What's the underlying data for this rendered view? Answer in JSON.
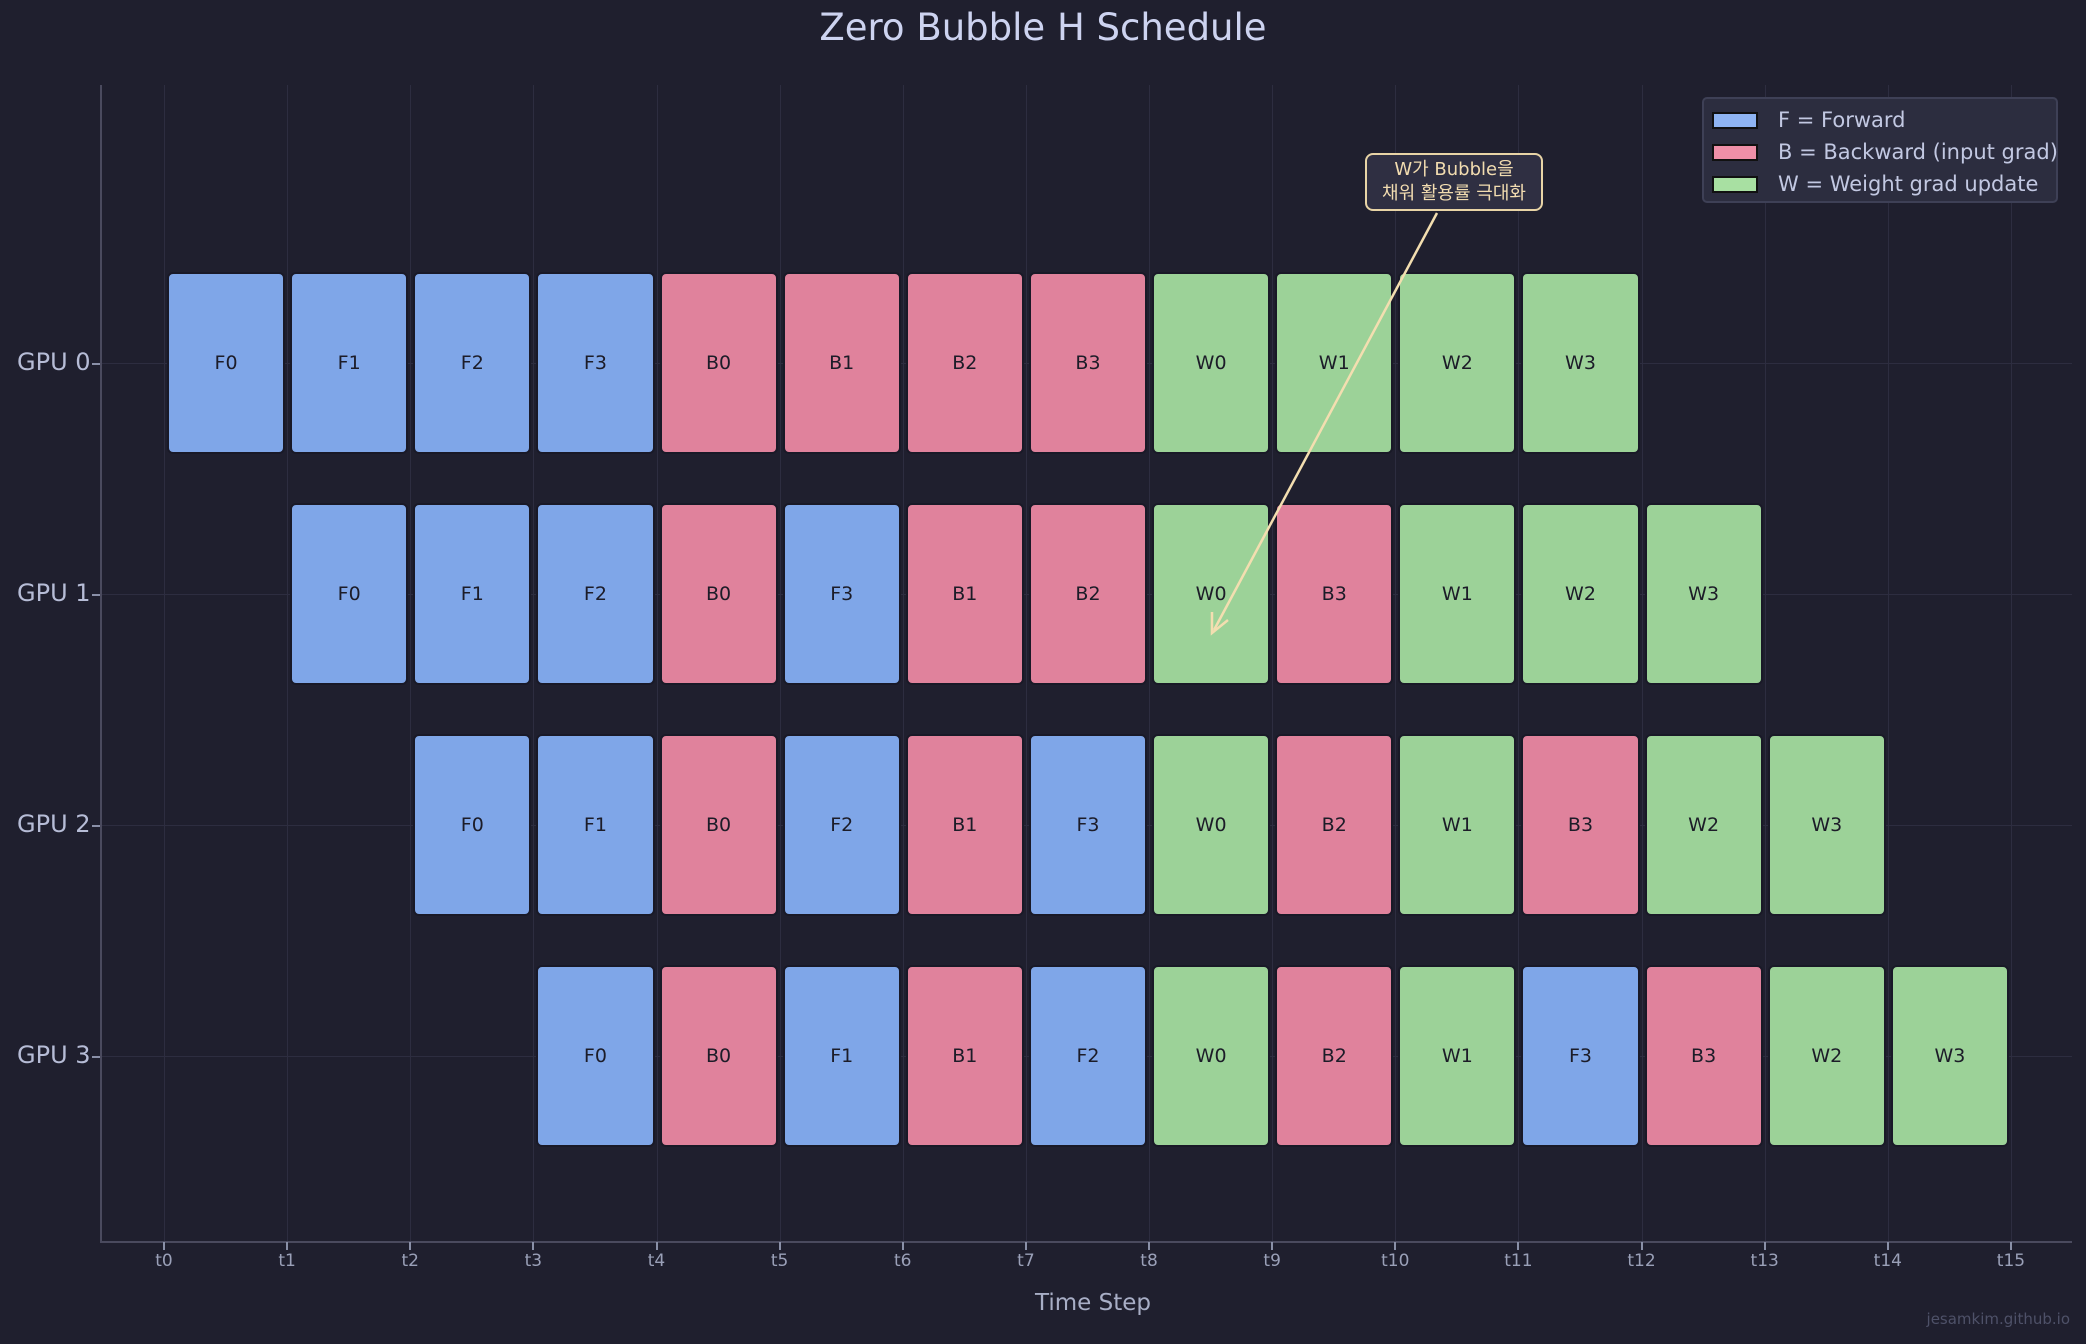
{
  "title": "Zero Bubble H Schedule",
  "xlabel": "Time Step",
  "watermark": "jesamkim.github.io",
  "colors": {
    "background": "#1f1f2e",
    "forward": "#7fa6e8",
    "backward": "#e0829c",
    "weight": "#9cd298",
    "annotation": "#e8d4a6"
  },
  "legend": {
    "items": [
      {
        "key": "F",
        "label": "F = Forward",
        "color": "#7fa6e8"
      },
      {
        "key": "B",
        "label": "B = Backward (input grad)",
        "color": "#e0829c"
      },
      {
        "key": "W",
        "label": "W = Weight grad update",
        "color": "#9cd298"
      }
    ]
  },
  "annotation": {
    "line1": "W가 Bubble을",
    "line2": "채워 활용률 극대화"
  },
  "xticks": [
    "t0",
    "t1",
    "t2",
    "t3",
    "t4",
    "t5",
    "t6",
    "t7",
    "t8",
    "t9",
    "t10",
    "t11",
    "t12",
    "t13",
    "t14",
    "t15"
  ],
  "yticks": [
    "GPU 0",
    "GPU 1",
    "GPU 2",
    "GPU 3"
  ],
  "chart_data": {
    "type": "gantt",
    "title": "Zero Bubble H Schedule",
    "xlabel": "Time Step",
    "ylabel": "",
    "x_ticks": [
      "t0",
      "t1",
      "t2",
      "t3",
      "t4",
      "t5",
      "t6",
      "t7",
      "t8",
      "t9",
      "t10",
      "t11",
      "t12",
      "t13",
      "t14",
      "t15"
    ],
    "y_categories": [
      "GPU 0",
      "GPU 1",
      "GPU 2",
      "GPU 3"
    ],
    "legend": [
      "F = Forward",
      "B = Backward (input grad)",
      "W = Weight grad update"
    ],
    "legend_position": "upper right",
    "grid": true,
    "annotation": {
      "text": "W가 Bubble을\n채워 활용률 극대화",
      "points_to": {
        "gpu": "GPU 1",
        "block": "W0",
        "start": 8
      }
    },
    "series": [
      {
        "gpu": "GPU 0",
        "blocks": [
          {
            "label": "F0",
            "type": "F",
            "start": 0
          },
          {
            "label": "F1",
            "type": "F",
            "start": 1
          },
          {
            "label": "F2",
            "type": "F",
            "start": 2
          },
          {
            "label": "F3",
            "type": "F",
            "start": 3
          },
          {
            "label": "B0",
            "type": "B",
            "start": 4
          },
          {
            "label": "B1",
            "type": "B",
            "start": 5
          },
          {
            "label": "B2",
            "type": "B",
            "start": 6
          },
          {
            "label": "B3",
            "type": "B",
            "start": 7
          },
          {
            "label": "W0",
            "type": "W",
            "start": 8
          },
          {
            "label": "W1",
            "type": "W",
            "start": 9
          },
          {
            "label": "W2",
            "type": "W",
            "start": 10
          },
          {
            "label": "W3",
            "type": "W",
            "start": 11
          }
        ]
      },
      {
        "gpu": "GPU 1",
        "blocks": [
          {
            "label": "F0",
            "type": "F",
            "start": 1
          },
          {
            "label": "F1",
            "type": "F",
            "start": 2
          },
          {
            "label": "F2",
            "type": "F",
            "start": 3
          },
          {
            "label": "B0",
            "type": "B",
            "start": 4
          },
          {
            "label": "F3",
            "type": "F",
            "start": 5
          },
          {
            "label": "B1",
            "type": "B",
            "start": 6
          },
          {
            "label": "B2",
            "type": "B",
            "start": 7
          },
          {
            "label": "W0",
            "type": "W",
            "start": 8
          },
          {
            "label": "B3",
            "type": "B",
            "start": 9
          },
          {
            "label": "W1",
            "type": "W",
            "start": 10
          },
          {
            "label": "W2",
            "type": "W",
            "start": 11
          },
          {
            "label": "W3",
            "type": "W",
            "start": 12
          }
        ]
      },
      {
        "gpu": "GPU 2",
        "blocks": [
          {
            "label": "F0",
            "type": "F",
            "start": 2
          },
          {
            "label": "F1",
            "type": "F",
            "start": 3
          },
          {
            "label": "B0",
            "type": "B",
            "start": 4
          },
          {
            "label": "F2",
            "type": "F",
            "start": 5
          },
          {
            "label": "B1",
            "type": "B",
            "start": 6
          },
          {
            "label": "F3",
            "type": "F",
            "start": 7
          },
          {
            "label": "W0",
            "type": "W",
            "start": 8
          },
          {
            "label": "B2",
            "type": "B",
            "start": 9
          },
          {
            "label": "W1",
            "type": "W",
            "start": 10
          },
          {
            "label": "B3",
            "type": "B",
            "start": 11
          },
          {
            "label": "W2",
            "type": "W",
            "start": 12
          },
          {
            "label": "W3",
            "type": "W",
            "start": 13
          }
        ]
      },
      {
        "gpu": "GPU 3",
        "blocks": [
          {
            "label": "F0",
            "type": "F",
            "start": 3
          },
          {
            "label": "B0",
            "type": "B",
            "start": 4
          },
          {
            "label": "F1",
            "type": "F",
            "start": 5
          },
          {
            "label": "B1",
            "type": "B",
            "start": 6
          },
          {
            "label": "F2",
            "type": "F",
            "start": 7
          },
          {
            "label": "W0",
            "type": "W",
            "start": 8
          },
          {
            "label": "B2",
            "type": "B",
            "start": 9
          },
          {
            "label": "W1",
            "type": "W",
            "start": 10
          },
          {
            "label": "F3",
            "type": "F",
            "start": 11
          },
          {
            "label": "B3",
            "type": "B",
            "start": 12
          },
          {
            "label": "W2",
            "type": "W",
            "start": 13
          },
          {
            "label": "W3",
            "type": "W",
            "start": 14
          }
        ]
      }
    ]
  }
}
